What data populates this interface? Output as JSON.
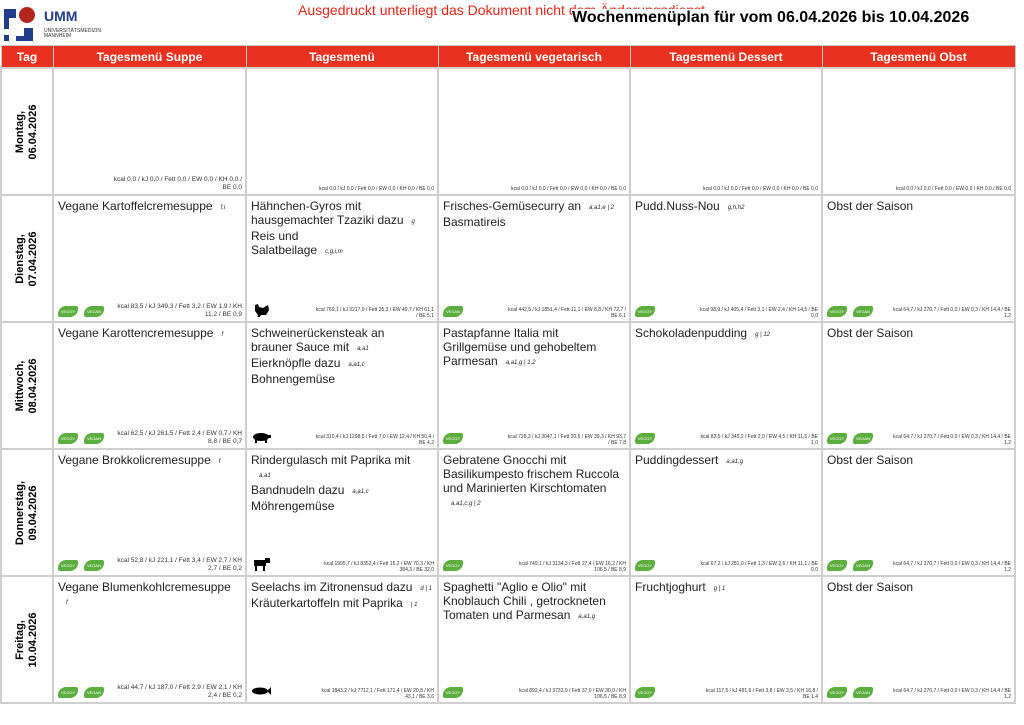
{
  "logo": {
    "name": "UMM",
    "subtitle": "UNIVERSITÄTSMEDIZIN MANNHEIM"
  },
  "notice": "Ausgedruckt unterliegt das Dokument nicht dem Änderungsdienst",
  "title": "Wochenmenüplan für vom 06.04.2026 bis 10.04.2026",
  "colors": {
    "header": "#e8321f",
    "veggy": "#5cae3e",
    "notice": "#e8251a"
  },
  "columns": [
    "Tag",
    "Tagesmenü Suppe",
    "Tagesmenü",
    "Tagesmenü vegetarisch",
    "Tagesmenü Dessert",
    "Tagesmenü Obst"
  ],
  "days": [
    {
      "label": "Montag,\n06.04.2026",
      "cells": [
        {
          "lines": [],
          "nutrition": "kcal 0,0 / kJ 0,0 / Fett 0,0 / EW 0,0 / KH 0,0 / BE 0,0",
          "big": true,
          "badges": []
        },
        {
          "lines": [],
          "nutrition": "kcal 0,0 / kJ 0,0 / Fett 0,0 / EW 0,0 / KH 0,0 / BE 0,0",
          "badges": []
        },
        {
          "lines": [],
          "nutrition": "kcal 0,0 / kJ 0,0 / Fett 0,0 / EW 0,0 / KH 0,0 / BE 0,0",
          "badges": []
        },
        {
          "lines": [],
          "nutrition": "kcal 0,0 / kJ 0,0 / Fett 0,0 / EW 0,0 / KH 0,0 / BE 0,0",
          "badges": []
        },
        {
          "lines": [],
          "nutrition": "kcal 0,0 / kJ 0,0 / Fett 0,0 / EW 0,0 / KH 0,0 / BE 0,0",
          "badges": []
        }
      ]
    },
    {
      "label": "Dienstag,\n07.04.2026",
      "cells": [
        {
          "lines": [
            {
              "text": "Vegane Kartoffelcremesuppe",
              "alg": "f,i"
            }
          ],
          "nutrition": "kcal 83,5 / kJ 349,3 / Fett 3,2 / EW 1,9 / KH 11,2 / BE 0,9",
          "big": true,
          "badges": [
            "VEGGY",
            "VEGAN"
          ]
        },
        {
          "lines": [
            {
              "text": "Hähnchen-Gyros mit"
            },
            {
              "text": "hausgemachter Tzaziki  dazu",
              "alg": "g"
            },
            {
              "text": "Reis und"
            },
            {
              "text": "Salatbeilage",
              "alg": "c,g,i,m"
            }
          ],
          "nutrition": "kcal 769,1 / kJ 3217,9 / Fett 35,3 / EW 49,7 / KH 61,1 / BE 5,1",
          "badges": [],
          "animal": "chicken"
        },
        {
          "lines": [
            {
              "text": "Frisches-Gemüsecurry an",
              "alg": "a,a1,e | 2"
            },
            {
              "text": "Basmatireis"
            }
          ],
          "nutrition": "kcal 442,5 / kJ 1851,4 / Fett 11,1 / EW 8,8 / KH 72,7 / BE 6,1",
          "badges": [
            "VEGAN"
          ]
        },
        {
          "lines": [
            {
              "text": "Pudd.Nuss-Nou",
              "alg": "g,h,h2"
            }
          ],
          "nutrition": "kcal 98,9 / kJ 405,4 / Fett 3,1 / EW 2,4 / KH 14,5 / BE 0,0",
          "badges": [
            "VEGGY"
          ]
        },
        {
          "lines": [
            {
              "text": "Obst der Saison"
            }
          ],
          "nutrition": "kcal 64,7 / kJ 270,7 / Fett 0,0 / EW 0,3 / KH 14,4 / BE 1,2",
          "badges": [
            "VEGGY",
            "VEGAN"
          ]
        }
      ]
    },
    {
      "label": "Mittwoch,\n08.04.2026",
      "cells": [
        {
          "lines": [
            {
              "text": "Vegane Karottencremesuppe",
              "alg": "f"
            }
          ],
          "nutrition": "kcal 62,5 / kJ 261,5 / Fett 2,4 / EW 0,7 / KH 8,8 / BE 0,7",
          "big": true,
          "badges": [
            "VEGGY",
            "VEGAN"
          ]
        },
        {
          "lines": [
            {
              "text": "Schweinerückensteak an"
            },
            {
              "text": "brauner Sauce mit",
              "alg": "a,a1"
            },
            {
              "text": "Eierknöpfle dazu",
              "alg": "a,a1,c"
            },
            {
              "text": "Bohnengemüse"
            }
          ],
          "nutrition": "kcal 310,4 / kJ 1298,5 / Fett 7,0 / EW 12,4 / KH 50,4 / BE 4,2",
          "badges": [],
          "animal": "pig"
        },
        {
          "lines": [
            {
              "text": "Pastapfanne Italia mit"
            },
            {
              "text": "Grillgemüse und gehobeltem"
            },
            {
              "text": "Parmesan",
              "alg": "a,a1,g | 1,2"
            }
          ],
          "nutrition": "kcal 728,3 / kJ 3047,1 / Fett 20,5 / EW 39,3 / KH 93,7 / BE 7,8",
          "badges": [
            "VEGGY"
          ]
        },
        {
          "lines": [
            {
              "text": "Schokoladenpudding",
              "alg": "g | 12"
            }
          ],
          "nutrition": "kcal 82,5 / kJ 345,2 / Fett 2,0 / EW 4,5 / KH 11,5 / BE 1,0",
          "badges": [
            "VEGGY"
          ]
        },
        {
          "lines": [
            {
              "text": "Obst der Saison"
            }
          ],
          "nutrition": "kcal 64,7 / kJ 270,7 / Fett 0,0 / EW 0,3 / KH 14,4 / BE 1,2",
          "badges": [
            "VEGGY",
            "VEGAN"
          ]
        }
      ]
    },
    {
      "label": "Donnerstag,\n09.04.2026",
      "cells": [
        {
          "lines": [
            {
              "text": "Vegane Brokkolicremesuppe",
              "alg": "f"
            }
          ],
          "nutrition": "kcal 52,8 / kJ 221,1 / Fett 3,4 / EW 2,7 / KH 2,7 / BE 0,2",
          "big": true,
          "badges": [
            "VEGGY",
            "VEGAN"
          ]
        },
        {
          "lines": [
            {
              "text": "Rindergulasch mit Paprika mit"
            },
            {
              "text": "",
              "alg": "a,a1"
            },
            {
              "text": "Bandnudeln dazu",
              "alg": "a,a1,c"
            },
            {
              "text": "Möhrengemüse"
            }
          ],
          "nutrition": "kcal 1995,7 / kJ 8352,4 / Fett 15,2 / EW 70,3 / KH 384,3 / BE 32,0",
          "badges": [],
          "animal": "cow"
        },
        {
          "lines": [
            {
              "text": "Gebratene Gnocchi mit"
            },
            {
              "text": "Basilikumpesto frischem Ruccola"
            },
            {
              "text": "und Marinierten Kirschtomaten"
            },
            {
              "text": "",
              "alg": "a,a1,c,g | 2"
            }
          ],
          "nutrition": "kcal 749,1 / kJ 3134,3 / Fett 27,4 / EW 16,2 / KH 106,5 / BE 8,9",
          "badges": [
            "VEGGY"
          ]
        },
        {
          "lines": [
            {
              "text": "Puddingdessert",
              "alg": "a,a1,g"
            }
          ],
          "nutrition": "kcal 67,2 / kJ 281,0 / Fett 1,3 / EW 2,6 / KH 11,1 / BE 0,0",
          "badges": [
            "VEGGY"
          ]
        },
        {
          "lines": [
            {
              "text": "Obst der Saison"
            }
          ],
          "nutrition": "kcal 64,7 / kJ 270,7 / Fett 0,0 / EW 0,3 / KH 14,4 / BE 1,2",
          "badges": [
            "VEGGY",
            "VEGAN"
          ]
        }
      ]
    },
    {
      "label": "Freitag,\n10.04.2026",
      "cells": [
        {
          "lines": [
            {
              "text": "Vegane Blumenkohlcremesuppe"
            },
            {
              "text": "",
              "alg": "f"
            }
          ],
          "nutrition": "kcal 44,7 / kJ 187,0 / Fett 2,9 / EW 2,1 / KH 2,4 / BE 0,2",
          "big": true,
          "badges": [
            "VEGGY",
            "VEGAN"
          ]
        },
        {
          "lines": [
            {
              "text": "Seelachs im Zitronensud dazu",
              "alg": "d | 1"
            },
            {
              "text": "Kräuterkartoffeln mit Paprika",
              "alg": "| 1"
            }
          ],
          "nutrition": "kcal 1843,2 / kJ 7712,1 / Fett 171,4 / EW 20,8 / KH 43,1 / BE 3,6",
          "badges": [],
          "animal": "fish"
        },
        {
          "lines": [
            {
              "text": "Spaghetti \"Aglio e Olio\" mit"
            },
            {
              "text": "Knoblauch Chili , getrockneten"
            },
            {
              "text": "Tomaten und Parmesan",
              "alg": "a,a1,g"
            }
          ],
          "nutrition": "kcal 892,4 / kJ 3733,9 / Fett 37,0 / EW 30,0 / KH 106,5 / BE 8,9",
          "badges": [
            "VEGGY"
          ]
        },
        {
          "lines": [
            {
              "text": "Fruchtjoghurt",
              "alg": "g | 1"
            }
          ],
          "nutrition": "kcal 117,5 / kJ 491,6 / Fett 3,8 / EW 3,5 / KH 16,8 / BE 1,4",
          "badges": [
            "VEGGY"
          ]
        },
        {
          "lines": [
            {
              "text": "Obst der Saison"
            }
          ],
          "nutrition": "kcal 64,7 / kJ 270,7 / Fett 0,0 / EW 0,3 / KH 14,4 / BE 1,2",
          "badges": [
            "VEGGY",
            "VEGAN"
          ]
        }
      ]
    }
  ]
}
